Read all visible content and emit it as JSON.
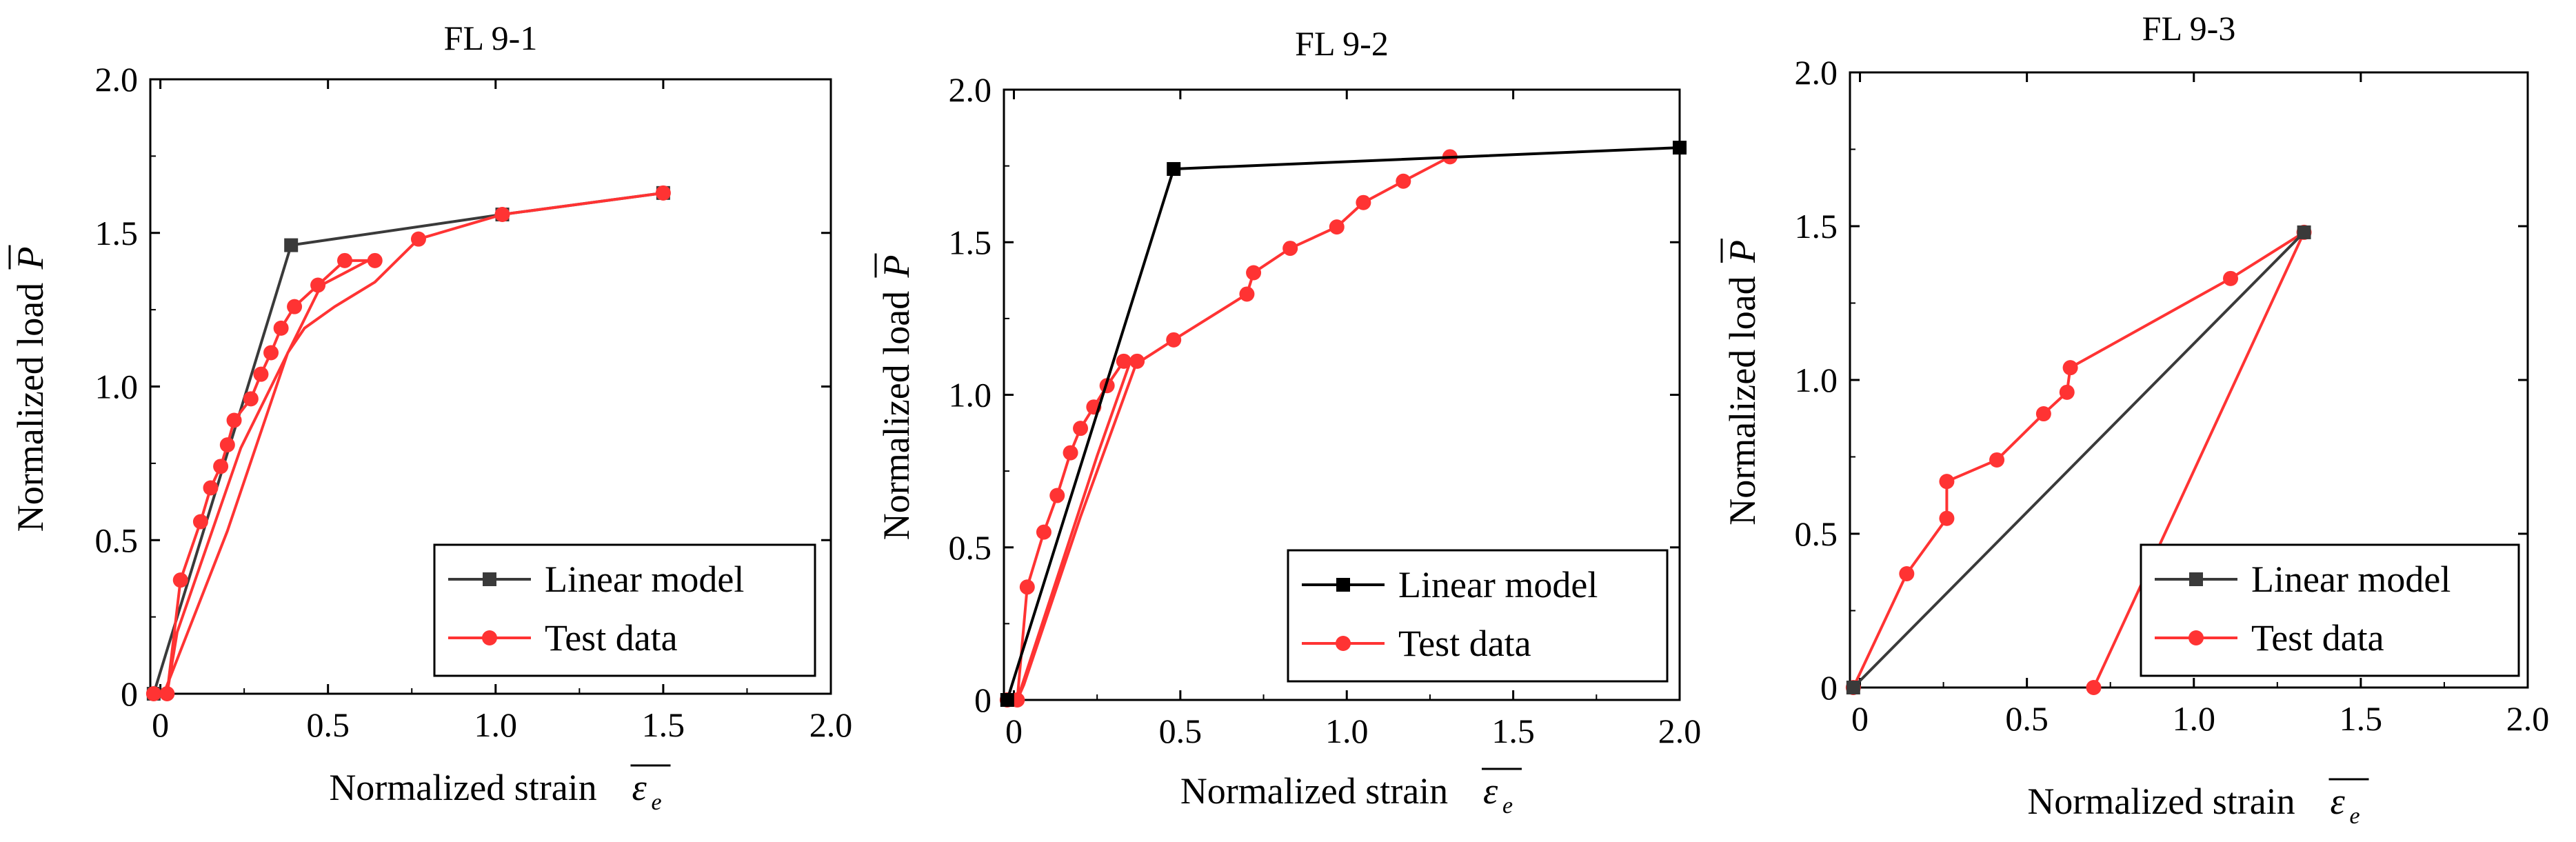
{
  "figure": {
    "description_panels": 3
  },
  "chart_data": [
    {
      "type": "line",
      "title": "FL 9-1",
      "xlabel": "Normalized strain",
      "xlabel_symbol": "ε",
      "xlabel_subscript": "e",
      "ylabel": "Normalized load",
      "ylabel_symbol": "P",
      "xlim": [
        -0.03,
        2.0
      ],
      "ylim": [
        0,
        2.0
      ],
      "xticks": [
        0,
        0.5,
        1.0,
        1.5,
        2.0
      ],
      "xtick_labels": [
        "0",
        "0.5",
        "1.0",
        "1.5",
        "2.0"
      ],
      "yticks": [
        0,
        0.5,
        1.0,
        1.5,
        2.0
      ],
      "ytick_labels": [
        "0",
        "0.5",
        "1.0",
        "1.5",
        "2.0"
      ],
      "legend_position": "bottom-right",
      "series": [
        {
          "name": "Linear model",
          "marker": "square",
          "color": "#3a3a3a",
          "x": [
            -0.02,
            0.39,
            1.02,
            1.5
          ],
          "y": [
            0,
            1.46,
            1.56,
            1.63
          ]
        },
        {
          "name": "Test data",
          "marker": "circle",
          "color": "#ff3333",
          "x": [
            -0.02,
            0.02,
            0.06,
            0.12,
            0.15,
            0.18,
            0.2,
            0.22,
            0.27,
            0.3,
            0.33,
            0.36,
            0.4,
            0.47,
            0.55,
            0.62,
            0.48,
            0.24,
            0.05,
            0.02,
            0.01,
            0.2,
            0.38,
            0.43,
            0.52,
            0.64,
            0.77,
            1.02,
            1.5
          ],
          "y": [
            0,
            0,
            0.37,
            0.56,
            0.67,
            0.74,
            0.81,
            0.89,
            0.96,
            1.04,
            1.11,
            1.19,
            1.26,
            1.33,
            1.41,
            1.41,
            1.33,
            0.8,
            0.2,
            0,
            0,
            0.53,
            1.11,
            1.19,
            1.26,
            1.34,
            1.48,
            1.56,
            1.63
          ],
          "marker_x": [
            -0.02,
            0.02,
            0.06,
            0.12,
            0.15,
            0.18,
            0.2,
            0.22,
            0.27,
            0.3,
            0.33,
            0.36,
            0.4,
            0.47,
            0.55,
            0.64,
            0.77,
            1.02,
            1.5
          ],
          "marker_y": [
            0,
            0,
            0.37,
            0.56,
            0.67,
            0.74,
            0.81,
            0.89,
            0.96,
            1.04,
            1.11,
            1.19,
            1.26,
            1.33,
            1.41,
            1.41,
            1.48,
            1.56,
            1.63
          ]
        }
      ]
    },
    {
      "type": "line",
      "title": "FL 9-2",
      "xlabel": "Normalized strain",
      "xlabel_symbol": "ε",
      "xlabel_subscript": "e",
      "ylabel": "Normalized load",
      "ylabel_symbol": "P",
      "xlim": [
        -0.03,
        2.0
      ],
      "ylim": [
        0,
        2.0
      ],
      "xticks": [
        0,
        0.5,
        1.0,
        1.5,
        2.0
      ],
      "xtick_labels": [
        "0",
        "0.5",
        "1.0",
        "1.5",
        "2.0"
      ],
      "yticks": [
        0,
        0.5,
        1.0,
        1.5,
        2.0
      ],
      "ytick_labels": [
        "0",
        "0.5",
        "1.0",
        "1.5",
        "2.0"
      ],
      "legend_position": "bottom-right",
      "series": [
        {
          "name": "Linear model",
          "marker": "square",
          "color": "#000000",
          "x": [
            -0.02,
            0.48,
            2.0
          ],
          "y": [
            0,
            1.74,
            1.81
          ]
        },
        {
          "name": "Test data",
          "marker": "circle",
          "color": "#ff3333",
          "x": [
            -0.02,
            0.01,
            0.04,
            0.09,
            0.13,
            0.17,
            0.2,
            0.24,
            0.28,
            0.33,
            0.37,
            0.2,
            0.03,
            0.01,
            0.25,
            0.35,
            0.38,
            0.48,
            0.7,
            0.72,
            0.83,
            0.97,
            1.05,
            1.17,
            1.31
          ],
          "y": [
            0,
            0,
            0.37,
            0.55,
            0.67,
            0.81,
            0.89,
            0.96,
            1.03,
            1.11,
            1.11,
            0.6,
            0.05,
            0,
            0.8,
            1.11,
            1.11,
            1.18,
            1.33,
            1.4,
            1.48,
            1.55,
            1.63,
            1.7,
            1.78
          ],
          "marker_x": [
            -0.02,
            0.01,
            0.04,
            0.09,
            0.13,
            0.17,
            0.2,
            0.24,
            0.28,
            0.33,
            0.37,
            0.48,
            0.7,
            0.72,
            0.83,
            0.97,
            1.05,
            1.17,
            1.31
          ],
          "marker_y": [
            0,
            0,
            0.37,
            0.55,
            0.67,
            0.81,
            0.89,
            0.96,
            1.03,
            1.11,
            1.11,
            1.18,
            1.33,
            1.4,
            1.48,
            1.55,
            1.63,
            1.7,
            1.78
          ]
        }
      ]
    },
    {
      "type": "line",
      "title": "FL 9-3",
      "xlabel": "Normalized strain",
      "xlabel_symbol": "ε",
      "xlabel_subscript": "e",
      "ylabel": "Normalized load",
      "ylabel_symbol": "P",
      "xlim": [
        -0.03,
        2.0
      ],
      "ylim": [
        0,
        2.0
      ],
      "xticks": [
        0,
        0.5,
        1.0,
        1.5,
        2.0
      ],
      "xtick_labels": [
        "0",
        "0.5",
        "1.0",
        "1.5",
        "2.0"
      ],
      "yticks": [
        0,
        0.5,
        1.0,
        1.5,
        2.0
      ],
      "ytick_labels": [
        "0",
        "0.5",
        "1.0",
        "1.5",
        "2.0"
      ],
      "legend_position": "bottom-right",
      "series": [
        {
          "name": "Linear model",
          "marker": "square",
          "color": "#3a3a3a",
          "x": [
            -0.02,
            1.33
          ],
          "y": [
            0,
            1.48
          ]
        },
        {
          "name": "Test data",
          "marker": "circle",
          "color": "#ff3333",
          "x": [
            -0.02,
            0.14,
            0.26,
            0.26,
            0.41,
            0.55,
            0.62,
            0.63,
            1.11,
            1.33,
            0.7
          ],
          "y": [
            0,
            0.37,
            0.55,
            0.67,
            0.74,
            0.89,
            0.96,
            1.04,
            1.33,
            1.48,
            0
          ],
          "marker_x": [
            -0.02,
            0.14,
            0.26,
            0.26,
            0.41,
            0.55,
            0.62,
            0.63,
            1.11,
            1.33,
            0.7
          ],
          "marker_y": [
            0,
            0.37,
            0.55,
            0.67,
            0.74,
            0.89,
            0.96,
            1.04,
            1.33,
            1.48,
            0
          ]
        }
      ]
    }
  ]
}
